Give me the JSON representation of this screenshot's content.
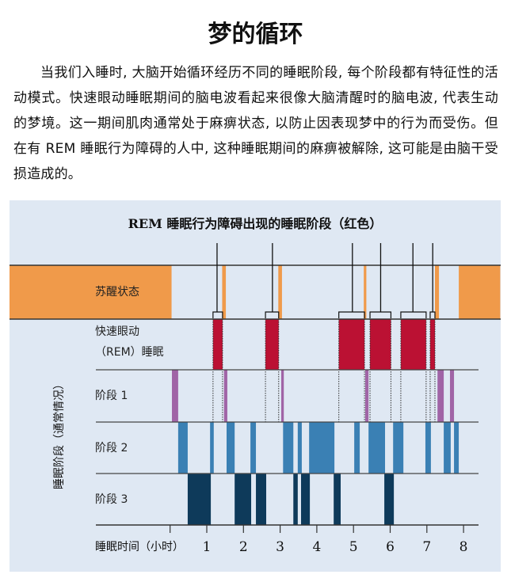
{
  "title": "梦的循环",
  "paragraph": "当我们入睡时, 大脑开始循环经历不同的睡眠阶段, 每个阶段都有特征性的活动模式。快速眼动睡眠期间的脑电波看起来很像大脑清醒时的脑电波, 代表生动的梦境。这一期间肌肉通常处于麻痹状态, 以防止因表现梦中的行为而受伤。但在有 REM 睡眠行为障碍的人中, 这种睡眠期间的麻痹被解除, 这可能是由脑干受损造成的。",
  "chart_data": {
    "type": "bar",
    "title": "REM 睡眠行为障碍出现的睡眠阶段（红色）",
    "xlabel": "睡眠时间（小时）",
    "ylabel": "睡眠阶段（通常情况）",
    "xlim": [
      -4.4,
      9.0
    ],
    "x_ticks": [
      "1",
      "2",
      "3",
      "4",
      "5",
      "6",
      "7",
      "8"
    ],
    "rows": [
      {
        "label": "苏醒状态",
        "color": "#f09a4a",
        "intervals": [
          [
            -4.4,
            0.04
          ],
          [
            1.42,
            1.52
          ],
          [
            2.95,
            3.05
          ],
          [
            5.28,
            5.35
          ],
          [
            7.22,
            7.33
          ],
          [
            7.87,
            9.0
          ]
        ]
      },
      {
        "label": "快速眼动",
        "label2": "（REM）睡眠",
        "color": "#bb1133",
        "intervals": [
          [
            1.17,
            1.43
          ],
          [
            2.6,
            2.96
          ],
          [
            4.6,
            5.3
          ],
          [
            5.45,
            6.02
          ],
          [
            6.29,
            6.98
          ],
          [
            7.09,
            7.22
          ]
        ]
      },
      {
        "label": "阶段 1",
        "color": "#a064a6",
        "intervals": [
          [
            0.05,
            0.22
          ],
          [
            1.47,
            1.56
          ],
          [
            3.03,
            3.1
          ],
          [
            5.32,
            5.41
          ],
          [
            7.29,
            7.46
          ],
          [
            7.63,
            7.74
          ]
        ]
      },
      {
        "label": "阶段 2",
        "color": "#3a80b4",
        "intervals": [
          [
            0.22,
            0.48
          ],
          [
            1.09,
            1.19
          ],
          [
            1.54,
            1.76
          ],
          [
            2.19,
            2.34
          ],
          [
            3.08,
            3.36
          ],
          [
            3.48,
            3.59
          ],
          [
            3.79,
            4.48
          ],
          [
            5.02,
            5.17
          ],
          [
            5.41,
            5.86
          ],
          [
            6.08,
            6.36
          ],
          [
            6.96,
            7.11
          ],
          [
            7.46,
            7.65
          ],
          [
            7.74,
            7.87
          ]
        ]
      },
      {
        "label": "阶段 3",
        "color": "#0e3a5a",
        "intervals": [
          [
            0.48,
            1.11
          ],
          [
            1.76,
            2.21
          ],
          [
            2.34,
            2.62
          ],
          [
            3.36,
            3.48
          ],
          [
            3.57,
            3.81
          ],
          [
            4.46,
            4.65
          ],
          [
            5.84,
            6.1
          ]
        ]
      }
    ],
    "rbd_markers": [
      1.28,
      2.79,
      4.97,
      5.74,
      6.62,
      7.16
    ]
  }
}
